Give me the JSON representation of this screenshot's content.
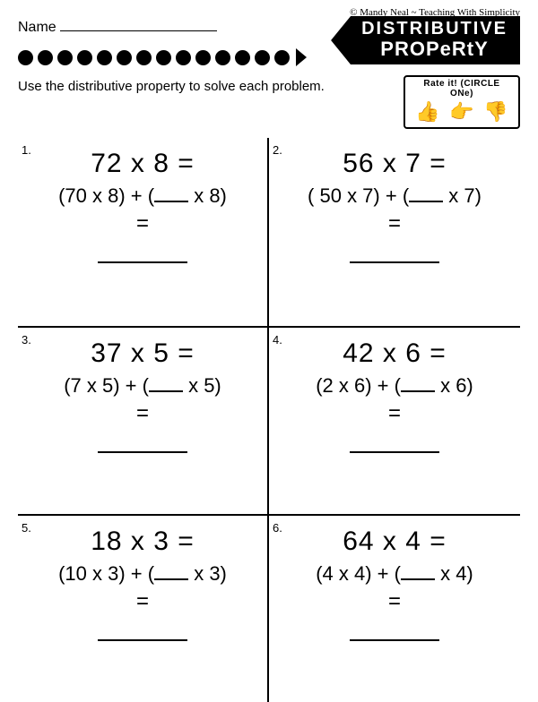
{
  "copyright": "© Mandy Neal ~ Teaching With Simplicity",
  "name_label": "Name",
  "title_line1": "DISTRIBUTIVE",
  "title_line2": "PROPeRtY",
  "dot_count": 14,
  "instruction": "Use the distributive property to solve each problem.",
  "rate_title": "Rate it! (CIRCLE ONe)",
  "thumbs": {
    "up": "👍",
    "side": "👉",
    "down": "👎"
  },
  "problems": [
    {
      "n": "1.",
      "main": "72 x 8 =",
      "sub_pre": "(70 x 8) + (",
      "sub_post": " x 8)"
    },
    {
      "n": "2.",
      "main": "56 x 7 =",
      "sub_pre": "( 50 x 7) + (",
      "sub_post": " x 7)"
    },
    {
      "n": "3.",
      "main": "37 x 5 =",
      "sub_pre": "(7 x 5) + (",
      "sub_post": " x 5)"
    },
    {
      "n": "4.",
      "main": "42 x 6 =",
      "sub_pre": "(2 x 6) + (",
      "sub_post": " x 6)"
    },
    {
      "n": "5.",
      "main": "18 x 3 =",
      "sub_pre": "(10 x 3) + (",
      "sub_post": " x 3)"
    },
    {
      "n": "6.",
      "main": "64 x 4 =",
      "sub_pre": "(4 x 4) + (",
      "sub_post": " x 4)"
    }
  ],
  "equals": "="
}
